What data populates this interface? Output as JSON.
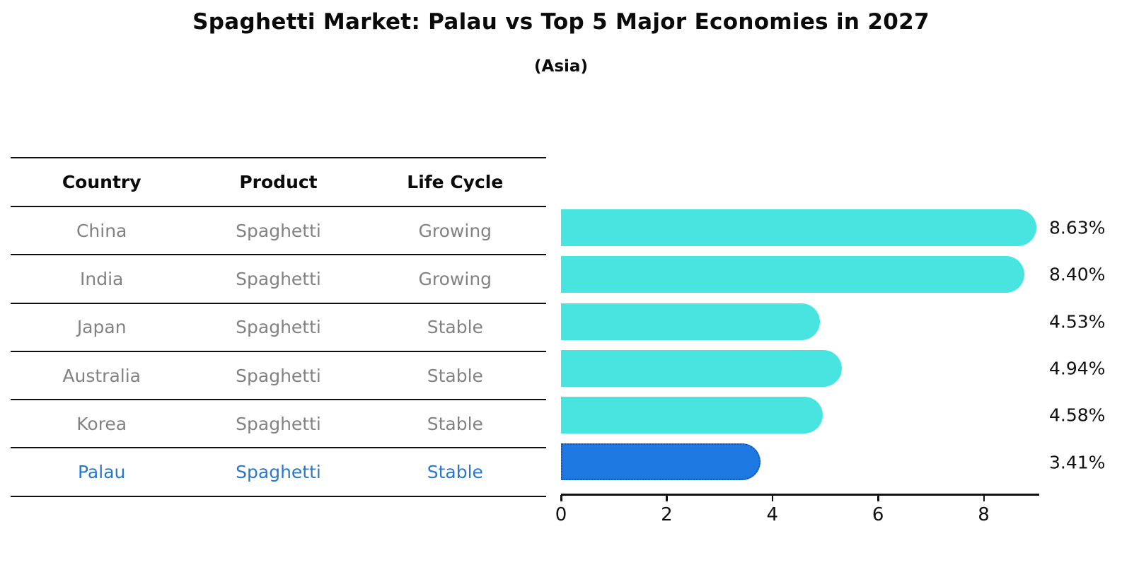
{
  "page": {
    "title": "Spaghetti Market: Palau vs Top 5 Major Economies in 2027",
    "subtitle": "(Asia)"
  },
  "table": {
    "headers": [
      "Country",
      "Product",
      "Life Cycle"
    ],
    "rows": [
      {
        "country": "China",
        "product": "Spaghetti",
        "life_cycle": "Growing",
        "highlight": false
      },
      {
        "country": "India",
        "product": "Spaghetti",
        "life_cycle": "Growing",
        "highlight": false
      },
      {
        "country": "Japan",
        "product": "Spaghetti",
        "life_cycle": "Stable",
        "highlight": false
      },
      {
        "country": "Australia",
        "product": "Spaghetti",
        "life_cycle": "Stable",
        "highlight": false
      },
      {
        "country": "Korea",
        "product": "Spaghetti",
        "life_cycle": "Stable",
        "highlight": false
      },
      {
        "country": "Palau",
        "product": "Spaghetti",
        "life_cycle": "Stable",
        "highlight": true
      }
    ],
    "text_color": "#828282",
    "highlight_text_color": "#2878CE",
    "header_text_color": "#0a0a0a"
  },
  "chart_data": {
    "type": "bar",
    "orientation": "horizontal",
    "title": "Spaghetti Market: Palau vs Top 5 Major Economies in 2027 (Asia)",
    "categories": [
      "China",
      "India",
      "Japan",
      "Australia",
      "Korea",
      "Palau"
    ],
    "values": [
      8.63,
      8.4,
      4.53,
      4.94,
      4.58,
      3.41
    ],
    "value_labels": [
      "8.63%",
      "8.40%",
      "4.53%",
      "4.94%",
      "4.58%",
      "3.41%"
    ],
    "xlabel": "",
    "ylabel": "",
    "xlim": [
      0,
      9.05
    ],
    "x_ticks": [
      "0",
      "2",
      "4",
      "6",
      "8"
    ],
    "x_tick_values": [
      0,
      2,
      4,
      6,
      8
    ],
    "grid": false,
    "legend": "none",
    "bar_color": "#48E5E0",
    "highlight_bar_color": "#1E78E1",
    "highlight_bar_border_color": "#1256B8",
    "highlight_index": 5,
    "axis_color": "#111111",
    "value_label_color": "#111111"
  }
}
